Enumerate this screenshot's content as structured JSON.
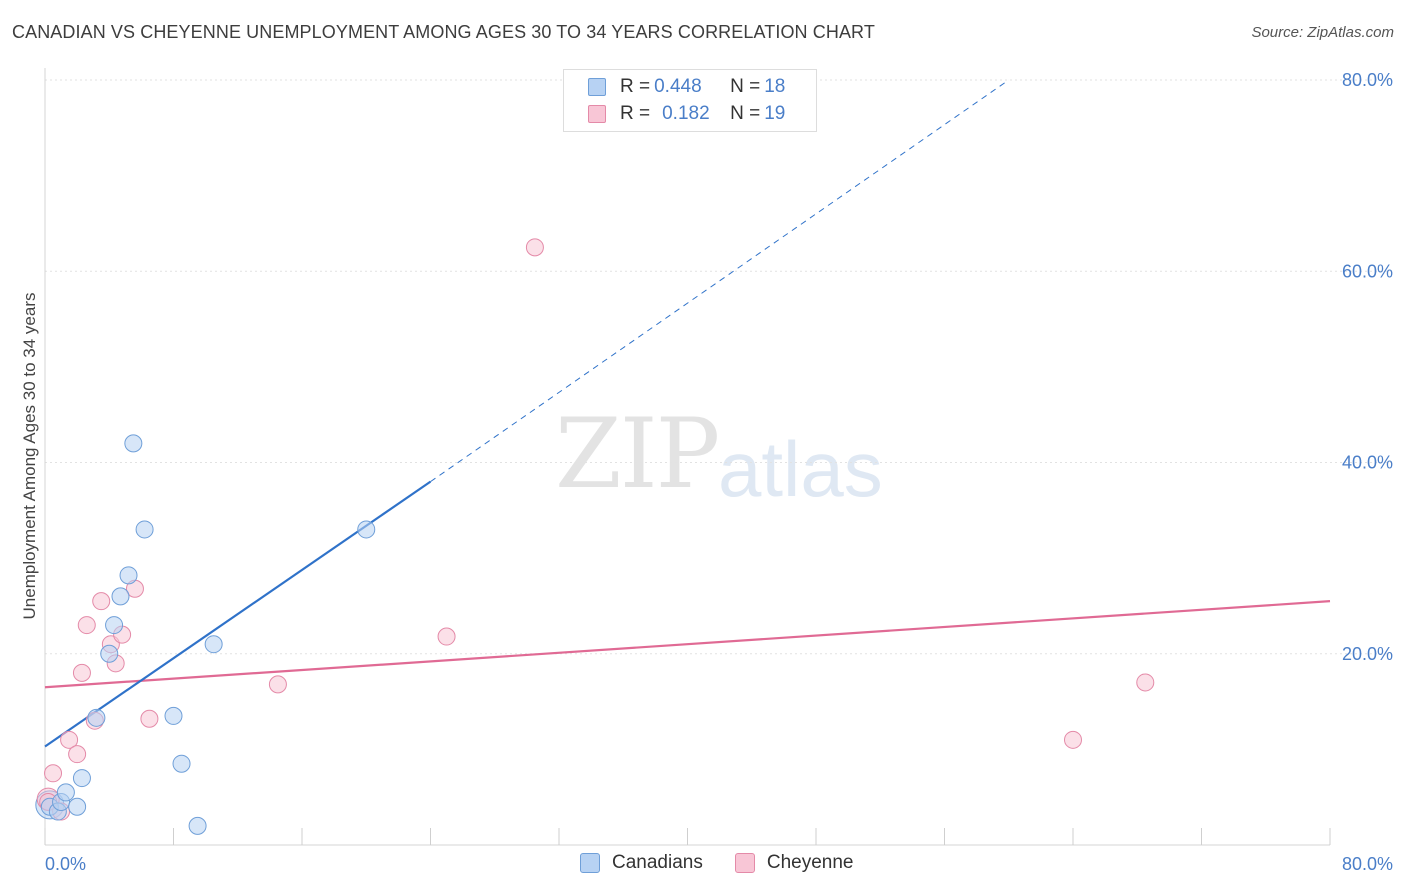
{
  "title": "CANADIAN VS CHEYENNE UNEMPLOYMENT AMONG AGES 30 TO 34 YEARS CORRELATION CHART",
  "source": "Source: ZipAtlas.com",
  "watermark": {
    "zip": "ZIP",
    "atlas": "atlas"
  },
  "legend_top": {
    "rows": [
      {
        "r_label": "R = ",
        "r_value": "0.448",
        "n_label": "N = ",
        "n_value": "18"
      },
      {
        "r_label": "R = ",
        "r_value": "0.182",
        "n_label": "N = ",
        "n_value": "19"
      }
    ]
  },
  "colors": {
    "canadians_fill": "#b7d2f3",
    "canadians_stroke": "#6f9fd8",
    "canadians_line": "#2f72c9",
    "cheyenne_fill": "#f8c6d6",
    "cheyenne_stroke": "#e48aa8",
    "cheyenne_line": "#e06a94",
    "tick_label": "#4a7ec8"
  },
  "chart_data": {
    "type": "scatter",
    "title": "CANADIAN VS CHEYENNE UNEMPLOYMENT AMONG AGES 30 TO 34 YEARS CORRELATION CHART",
    "xlabel": "",
    "ylabel": "Unemployment Among Ages 30 to 34 years",
    "xlim": [
      0,
      80
    ],
    "ylim": [
      0,
      80
    ],
    "x_tick_labels": [
      "0.0%",
      "80.0%"
    ],
    "y_tick_labels": [
      "20.0%",
      "40.0%",
      "60.0%",
      "80.0%"
    ],
    "y_ticks": [
      20,
      40,
      60,
      80
    ],
    "legend_position": "bottom",
    "series": [
      {
        "name": "Canadians",
        "r": 0.448,
        "n": 18,
        "points": [
          [
            0.3,
            4.0
          ],
          [
            0.8,
            3.5
          ],
          [
            1.0,
            4.5
          ],
          [
            1.3,
            5.5
          ],
          [
            2.0,
            4.0
          ],
          [
            2.3,
            7.0
          ],
          [
            3.2,
            13.3
          ],
          [
            4.0,
            20.0
          ],
          [
            4.3,
            23.0
          ],
          [
            4.7,
            26.0
          ],
          [
            5.2,
            28.2
          ],
          [
            5.5,
            42.0
          ],
          [
            6.2,
            33.0
          ],
          [
            8.0,
            13.5
          ],
          [
            8.5,
            8.5
          ],
          [
            9.5,
            2.0
          ],
          [
            10.5,
            21.0
          ],
          [
            20.0,
            33.0
          ]
        ],
        "trend": {
          "x0": 0,
          "y0": 10.3,
          "x1": 24,
          "y1": 38.0,
          "dash_x1": 60,
          "dash_y1": 80
        }
      },
      {
        "name": "Cheyenne",
        "r": 0.182,
        "n": 19,
        "points": [
          [
            0.2,
            4.5
          ],
          [
            0.5,
            7.5
          ],
          [
            1.0,
            3.5
          ],
          [
            1.5,
            11.0
          ],
          [
            2.0,
            9.5
          ],
          [
            2.3,
            18.0
          ],
          [
            2.6,
            23.0
          ],
          [
            3.1,
            13.0
          ],
          [
            3.5,
            25.5
          ],
          [
            4.1,
            21.0
          ],
          [
            4.4,
            19.0
          ],
          [
            4.8,
            22.0
          ],
          [
            5.6,
            26.8
          ],
          [
            6.5,
            13.2
          ],
          [
            14.5,
            16.8
          ],
          [
            25.0,
            21.8
          ],
          [
            30.5,
            62.5
          ],
          [
            64.0,
            11.0
          ],
          [
            68.5,
            17.0
          ]
        ],
        "trend": {
          "x0": 0,
          "y0": 16.5,
          "x1": 80,
          "y1": 25.5
        }
      }
    ]
  },
  "bottom_legend": {
    "items": [
      "Canadians",
      "Cheyenne"
    ]
  }
}
